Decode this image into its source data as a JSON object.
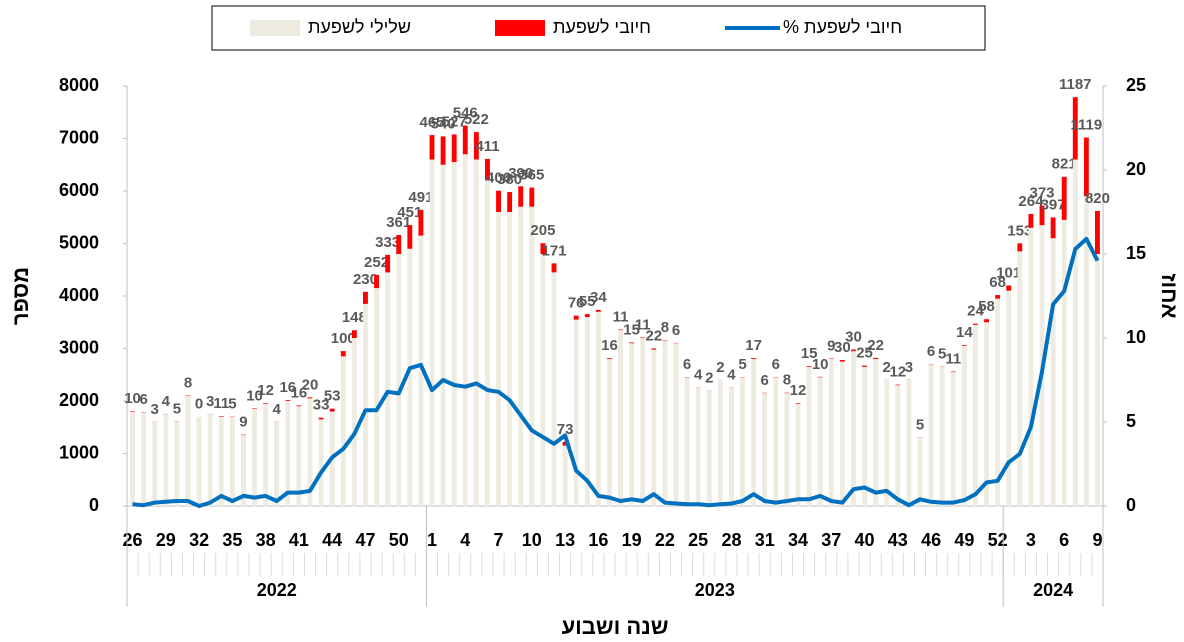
{
  "chart_data": {
    "type": "bar",
    "stacked": true,
    "x_title": "שנה ושבוע",
    "y_title": "מספר",
    "y2_title": "אחוז",
    "categories": [
      "26",
      null,
      null,
      "29",
      null,
      null,
      "32",
      null,
      null,
      "35",
      null,
      null,
      "38",
      null,
      null,
      "41",
      null,
      null,
      "44",
      null,
      null,
      "47",
      null,
      null,
      "50",
      null,
      null,
      "1",
      null,
      null,
      "4",
      null,
      null,
      "7",
      null,
      null,
      "10",
      null,
      null,
      "13",
      null,
      null,
      "16",
      null,
      null,
      "19",
      null,
      null,
      "22",
      null,
      null,
      "25",
      null,
      null,
      "28",
      null,
      null,
      "31",
      null,
      null,
      "34",
      null,
      null,
      "37",
      null,
      null,
      "40",
      null,
      null,
      "43",
      null,
      null,
      "46",
      null,
      null,
      "49",
      null,
      null,
      "52",
      null,
      null,
      "3",
      null,
      null,
      "6",
      null,
      null,
      "9"
    ],
    "groups": [
      {
        "label": "2022",
        "span": 27
      },
      {
        "label": "2023",
        "span": 52
      },
      {
        "label": "2024",
        "span": 9
      }
    ],
    "series": [
      {
        "name": "שלילי לשפעת",
        "color": "#eeebe0",
        "values": [
          1800,
          1780,
          1600,
          1750,
          1600,
          2100,
          1700,
          1750,
          1700,
          1700,
          1350,
          1850,
          1950,
          1600,
          2000,
          1900,
          2050,
          1650,
          1800,
          2850,
          3200,
          3850,
          4150,
          4450,
          4800,
          4900,
          5150,
          6600,
          6500,
          6550,
          6700,
          6600,
          6200,
          5600,
          5600,
          5700,
          5700,
          4800,
          4450,
          1150,
          3550,
          3600,
          3700,
          2800,
          3350,
          3100,
          3200,
          2980,
          3150,
          3100,
          2450,
          2250,
          2200,
          2400,
          2250,
          2450,
          2800,
          2150,
          2450,
          2150,
          1950,
          2650,
          2450,
          2800,
          2750,
          2950,
          2650,
          2800,
          2400,
          2300,
          2400,
          1300,
          2700,
          2650,
          2550,
          3050,
          3450,
          3500,
          3950,
          4100,
          4850,
          5300,
          5350,
          5100,
          5450,
          6600,
          5900,
          4800
        ]
      },
      {
        "name": "חיובי לשפעת",
        "color": "#ff0000",
        "values": [
          10,
          6,
          3,
          4,
          5,
          8,
          0,
          3,
          11,
          5,
          9,
          10,
          12,
          4,
          16,
          16,
          20,
          33,
          53,
          100,
          148,
          230,
          252,
          333,
          361,
          451,
          491,
          465,
          540,
          527,
          546,
          522,
          411,
          406,
          380,
          390,
          365,
          205,
          171,
          73,
          76,
          55,
          34,
          16,
          11,
          15,
          11,
          22,
          8,
          6,
          6,
          4,
          2,
          2,
          4,
          5,
          17,
          6,
          6,
          8,
          12,
          15,
          10,
          9,
          30,
          30,
          25,
          22,
          2,
          12,
          3,
          5,
          6,
          5,
          11,
          14,
          24,
          58,
          68,
          101,
          153,
          264,
          373,
          397,
          821,
          1187,
          1119,
          820
        ]
      },
      {
        "name": "% חיובי לשפעת",
        "color": "#0070c0",
        "type": "line",
        "axis": "y2",
        "values": [
          0.1,
          0.05,
          0.2,
          0.25,
          0.3,
          0.3,
          0.0,
          0.2,
          0.6,
          0.3,
          0.6,
          0.5,
          0.6,
          0.3,
          0.8,
          0.8,
          0.9,
          2.0,
          2.9,
          3.4,
          4.3,
          5.7,
          5.7,
          6.8,
          6.7,
          8.2,
          8.4,
          6.9,
          7.5,
          7.2,
          7.1,
          7.3,
          6.9,
          6.8,
          6.3,
          5.4,
          4.5,
          4.1,
          3.7,
          4.2,
          2.1,
          1.5,
          0.6,
          0.5,
          0.3,
          0.4,
          0.3,
          0.7,
          0.2,
          0.15,
          0.1,
          0.1,
          0.05,
          0.1,
          0.15,
          0.3,
          0.7,
          0.3,
          0.2,
          0.3,
          0.4,
          0.4,
          0.6,
          0.3,
          0.2,
          1.0,
          1.1,
          0.8,
          0.9,
          0.4,
          0.05,
          0.4,
          0.25,
          0.2,
          0.2,
          0.35,
          0.7,
          1.4,
          1.5,
          2.6,
          3.1,
          4.7,
          8.0,
          12.0,
          12.8,
          15.3,
          15.9,
          14.6
        ]
      }
    ],
    "ylim": [
      0,
      8000
    ],
    "yticks": [
      0,
      1000,
      2000,
      3000,
      4000,
      5000,
      6000,
      7000,
      8000
    ],
    "y2lim": [
      0,
      25
    ],
    "y2ticks": [
      0,
      5,
      10,
      15,
      20,
      25
    ],
    "legend": "top"
  }
}
